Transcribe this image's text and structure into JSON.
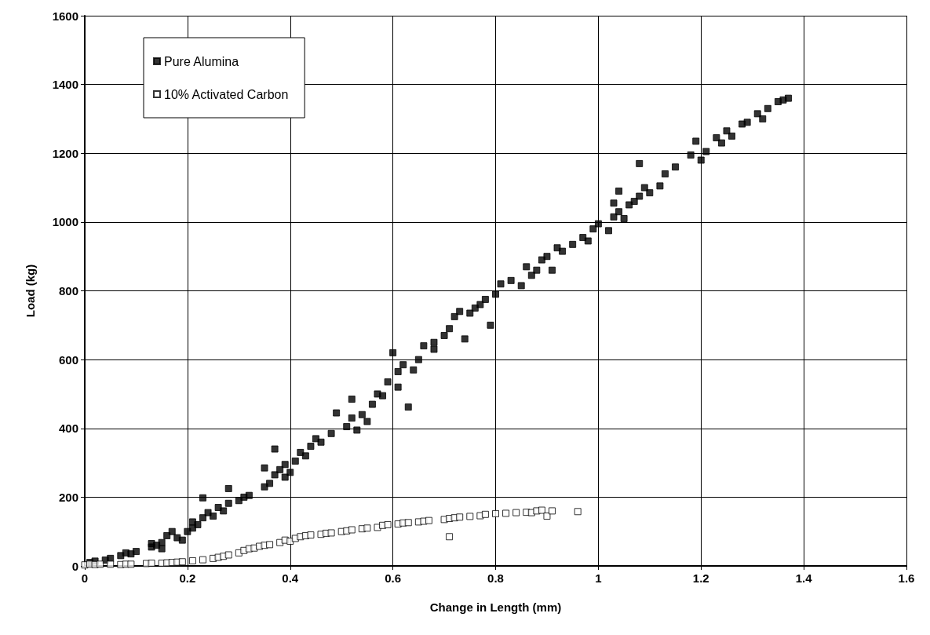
{
  "chart_data": {
    "type": "scatter",
    "xlabel": "Change in Length (mm)",
    "ylabel": "Load (kg)",
    "xlim": [
      0,
      1.6
    ],
    "ylim": [
      0,
      1600
    ],
    "xticks": [
      0,
      0.2,
      0.4,
      0.6,
      0.8,
      1,
      1.2,
      1.4,
      1.6
    ],
    "yticks": [
      0,
      200,
      400,
      600,
      800,
      1000,
      1200,
      1400,
      1600
    ],
    "grid": true,
    "legend": "top left",
    "marker": "square",
    "series": [
      {
        "name": "Pure Alumina",
        "color": "#000000",
        "x": [
          0.01,
          0.02,
          0.04,
          0.05,
          0.07,
          0.08,
          0.09,
          0.1,
          0.13,
          0.13,
          0.14,
          0.15,
          0.15,
          0.16,
          0.17,
          0.18,
          0.19,
          0.2,
          0.21,
          0.21,
          0.22,
          0.23,
          0.23,
          0.24,
          0.25,
          0.26,
          0.27,
          0.28,
          0.28,
          0.3,
          0.31,
          0.32,
          0.35,
          0.35,
          0.36,
          0.37,
          0.37,
          0.38,
          0.39,
          0.39,
          0.4,
          0.41,
          0.42,
          0.43,
          0.44,
          0.45,
          0.46,
          0.48,
          0.49,
          0.51,
          0.52,
          0.52,
          0.53,
          0.54,
          0.55,
          0.56,
          0.57,
          0.58,
          0.59,
          0.6,
          0.61,
          0.61,
          0.62,
          0.63,
          0.64,
          0.65,
          0.66,
          0.68,
          0.68,
          0.7,
          0.71,
          0.72,
          0.73,
          0.74,
          0.75,
          0.76,
          0.77,
          0.78,
          0.79,
          0.8,
          0.81,
          0.83,
          0.85,
          0.86,
          0.87,
          0.88,
          0.89,
          0.9,
          0.91,
          0.92,
          0.93,
          0.95,
          0.97,
          0.98,
          0.99,
          1,
          1.02,
          1.03,
          1.03,
          1.04,
          1.04,
          1.05,
          1.06,
          1.07,
          1.08,
          1.08,
          1.09,
          1.1,
          1.12,
          1.13,
          1.15,
          1.18,
          1.19,
          1.2,
          1.21,
          1.23,
          1.24,
          1.25,
          1.26,
          1.28,
          1.29,
          1.31,
          1.32,
          1.33,
          1.35,
          1.36,
          1.37
        ],
        "values": [
          10,
          14,
          17,
          22,
          30,
          38,
          35,
          42,
          55,
          65,
          60,
          50,
          68,
          88,
          100,
          82,
          75,
          100,
          110,
          128,
          120,
          140,
          198,
          155,
          145,
          170,
          160,
          182,
          225,
          190,
          200,
          205,
          230,
          285,
          240,
          265,
          340,
          280,
          295,
          258,
          272,
          305,
          330,
          320,
          348,
          370,
          360,
          385,
          445,
          405,
          430,
          485,
          395,
          440,
          420,
          470,
          500,
          495,
          535,
          620,
          520,
          565,
          585,
          462,
          570,
          600,
          640,
          650,
          630,
          670,
          690,
          725,
          740,
          660,
          735,
          750,
          760,
          775,
          700,
          790,
          820,
          830,
          815,
          870,
          845,
          860,
          890,
          900,
          860,
          925,
          915,
          935,
          955,
          945,
          980,
          995,
          975,
          1015,
          1055,
          1090,
          1030,
          1010,
          1050,
          1060,
          1075,
          1170,
          1100,
          1085,
          1105,
          1140,
          1160,
          1195,
          1235,
          1180,
          1205,
          1245,
          1230,
          1265,
          1250,
          1285,
          1290,
          1315,
          1300,
          1330,
          1350,
          1355,
          1360
        ]
      },
      {
        "name": "10% Activated Carbon",
        "color": "#ffffff",
        "x": [
          0,
          0.01,
          0.02,
          0.03,
          0.05,
          0.07,
          0.08,
          0.09,
          0.12,
          0.13,
          0.15,
          0.16,
          0.17,
          0.18,
          0.19,
          0.21,
          0.23,
          0.25,
          0.26,
          0.27,
          0.28,
          0.3,
          0.31,
          0.32,
          0.33,
          0.34,
          0.35,
          0.36,
          0.38,
          0.39,
          0.4,
          0.41,
          0.42,
          0.43,
          0.44,
          0.46,
          0.47,
          0.48,
          0.5,
          0.51,
          0.52,
          0.54,
          0.55,
          0.57,
          0.58,
          0.59,
          0.61,
          0.62,
          0.63,
          0.65,
          0.66,
          0.67,
          0.7,
          0.71,
          0.71,
          0.72,
          0.73,
          0.75,
          0.77,
          0.78,
          0.8,
          0.82,
          0.84,
          0.86,
          0.87,
          0.88,
          0.89,
          0.9,
          0.91,
          0.96
        ],
        "values": [
          3,
          5,
          4,
          5,
          5,
          4,
          5,
          5,
          7,
          8,
          8,
          9,
          10,
          11,
          12,
          15,
          18,
          22,
          25,
          28,
          32,
          38,
          45,
          50,
          52,
          57,
          60,
          62,
          68,
          75,
          72,
          80,
          85,
          88,
          90,
          92,
          95,
          96,
          100,
          102,
          105,
          108,
          110,
          112,
          118,
          120,
          122,
          125,
          126,
          128,
          130,
          132,
          135,
          85,
          138,
          140,
          142,
          144,
          146,
          150,
          152,
          153,
          155,
          156,
          155,
          160,
          162,
          145,
          160,
          158
        ]
      }
    ]
  }
}
